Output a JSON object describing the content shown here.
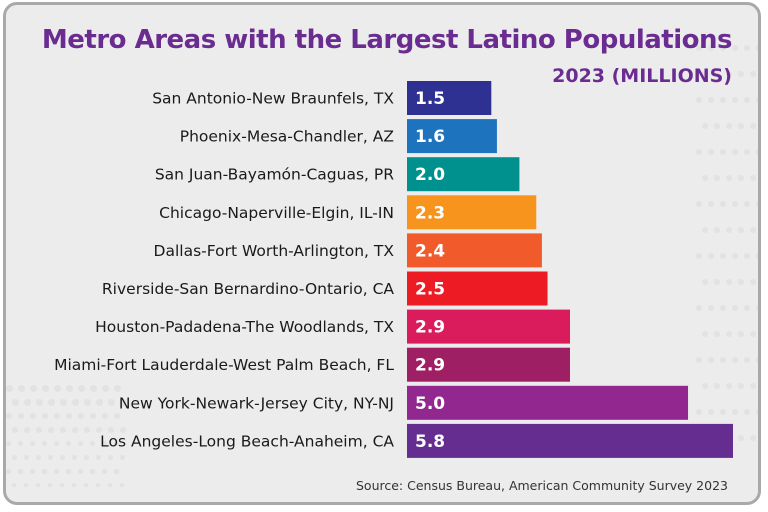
{
  "header": {
    "title": "Metro Areas with the Largest Latino Populations",
    "subtitle": "2023 (MILLIONS)"
  },
  "footer": {
    "source": "Source: Census Bureau, American Community Survey 2023"
  },
  "colors": {
    "title": "#6a2c91",
    "background": "#ececec",
    "border": "#a9a9ab"
  },
  "chart_data": {
    "type": "bar",
    "orientation": "horizontal",
    "title": "Metro Areas with the Largest Latino Populations",
    "subtitle": "2023 (MILLIONS)",
    "xlabel": "",
    "ylabel": "",
    "xlim": [
      0,
      5.8
    ],
    "grid": false,
    "legend": "none",
    "categories": [
      "San Antonio-New Braunfels, TX",
      "Phoenix-Mesa-Chandler, AZ",
      "San Juan-Bayamón-Caguas, PR",
      "Chicago-Naperville-Elgin, IL-IN",
      "Dallas-Fort Worth-Arlington, TX",
      "Riverside-San Bernardino-Ontario, CA",
      "Houston-Padadena-The Woodlands, TX",
      "Miami-Fort Lauderdale-West Palm Beach, FL",
      "New York-Newark-Jersey City, NY-NJ",
      "Los Angeles-Long Beach-Anaheim, CA"
    ],
    "values": [
      1.5,
      1.6,
      2.0,
      2.3,
      2.4,
      2.5,
      2.9,
      2.9,
      5.0,
      5.8
    ],
    "value_labels": [
      "1.5",
      "1.6",
      "2.0",
      "2.3",
      "2.4",
      "2.5",
      "2.9",
      "2.9",
      "5.0",
      "5.8"
    ],
    "bar_colors": [
      "#2e3192",
      "#1e73be",
      "#00918f",
      "#f7941d",
      "#f15a2b",
      "#ed1c24",
      "#da1c5c",
      "#9e1f63",
      "#92278f",
      "#662d91"
    ],
    "source": "Source: Census Bureau, American Community Survey 2023"
  }
}
